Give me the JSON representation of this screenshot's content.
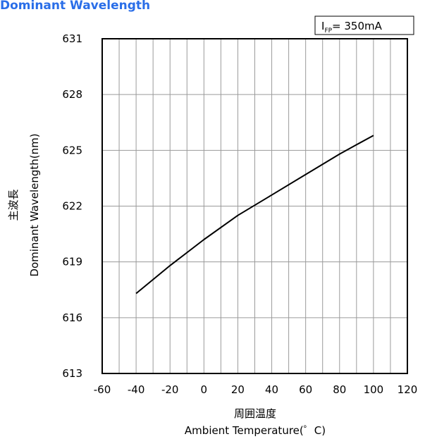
{
  "title": "Dominant Wavelength",
  "legend_box": {
    "main": "I",
    "sub": "FP",
    "value": "= 350mA"
  },
  "chart_data": {
    "type": "line",
    "title": "Dominant Wavelength",
    "xlabel_jp": "周囲温度",
    "xlabel": "Ambient Temperature(゜C)",
    "ylabel_jp": "主波長",
    "ylabel": "Dominant Wavelength(nm)",
    "xlim": [
      -60,
      120
    ],
    "ylim": [
      613,
      631
    ],
    "xticks": [
      -60,
      -40,
      -20,
      0,
      20,
      40,
      60,
      80,
      100,
      120
    ],
    "yticks": [
      613,
      616,
      619,
      622,
      625,
      628,
      631
    ],
    "grid": true,
    "series": [
      {
        "x": [
          -40,
          -20,
          0,
          20,
          40,
          60,
          80,
          90,
          100
        ],
        "y": [
          617.3,
          618.8,
          620.2,
          621.5,
          622.6,
          623.7,
          624.8,
          625.3,
          625.8
        ]
      }
    ]
  }
}
